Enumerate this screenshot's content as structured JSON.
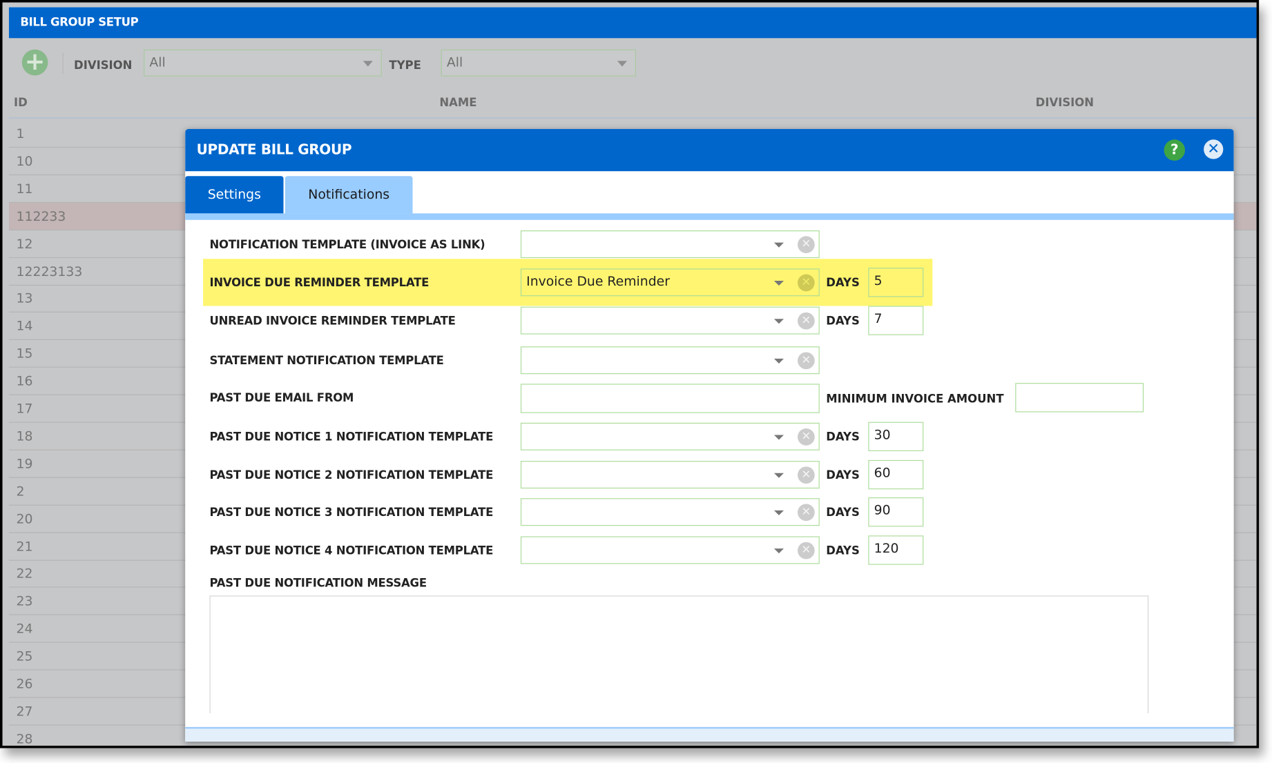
{
  "app": {
    "title": "BILL GROUP SETUP"
  },
  "toolbar": {
    "add_icon": "plus-circle-icon",
    "division_label": "DIVISION",
    "division_value": "All",
    "type_label": "TYPE",
    "type_value": "All"
  },
  "table": {
    "columns": [
      "ID",
      "NAME",
      "DIVISION"
    ],
    "rows": [
      "1",
      "10",
      "11",
      "112233",
      "12",
      "12223133",
      "13",
      "14",
      "15",
      "16",
      "17",
      "18",
      "19",
      "2",
      "20",
      "21",
      "22",
      "23",
      "24",
      "25",
      "26",
      "27",
      "28"
    ],
    "selected_row": "112233"
  },
  "dialog": {
    "title": "UPDATE BILL GROUP",
    "help_icon": "question-circle-icon",
    "close_icon": "close-circle-icon",
    "tabs": [
      {
        "label": "Settings",
        "active": false
      },
      {
        "label": "Notifications",
        "active": true
      }
    ],
    "days_label": "DAYS",
    "fields": [
      {
        "label": "NOTIFICATION TEMPLATE (INVOICE AS LINK)",
        "value": "",
        "days": null
      },
      {
        "label": "INVOICE DUE REMINDER TEMPLATE",
        "value": "Invoice Due Reminder",
        "days": "5",
        "highlighted": true
      },
      {
        "label": "UNREAD INVOICE REMINDER TEMPLATE",
        "value": "",
        "days": "7"
      },
      {
        "label": "STATEMENT NOTIFICATION TEMPLATE",
        "value": "",
        "days": null
      },
      {
        "label": "PAST DUE EMAIL FROM",
        "value": "",
        "min_label": "MINIMUM INVOICE AMOUNT",
        "min_value": ""
      },
      {
        "label": "PAST DUE NOTICE 1 NOTIFICATION TEMPLATE",
        "value": "",
        "days": "30"
      },
      {
        "label": "PAST DUE NOTICE 2 NOTIFICATION TEMPLATE",
        "value": "",
        "days": "60"
      },
      {
        "label": "PAST DUE NOTICE 3 NOTIFICATION TEMPLATE",
        "value": "",
        "days": "90"
      },
      {
        "label": "PAST DUE NOTICE 4 NOTIFICATION TEMPLATE",
        "value": "",
        "days": "120"
      }
    ],
    "message_label": "PAST DUE NOTIFICATION MESSAGE",
    "message_value": ""
  },
  "colors": {
    "primary": "#0066cc",
    "tab_inactive": "#99ccff",
    "highlight": "#fff570",
    "help": "#3fa443",
    "selected_row": "#c4b5b6"
  }
}
